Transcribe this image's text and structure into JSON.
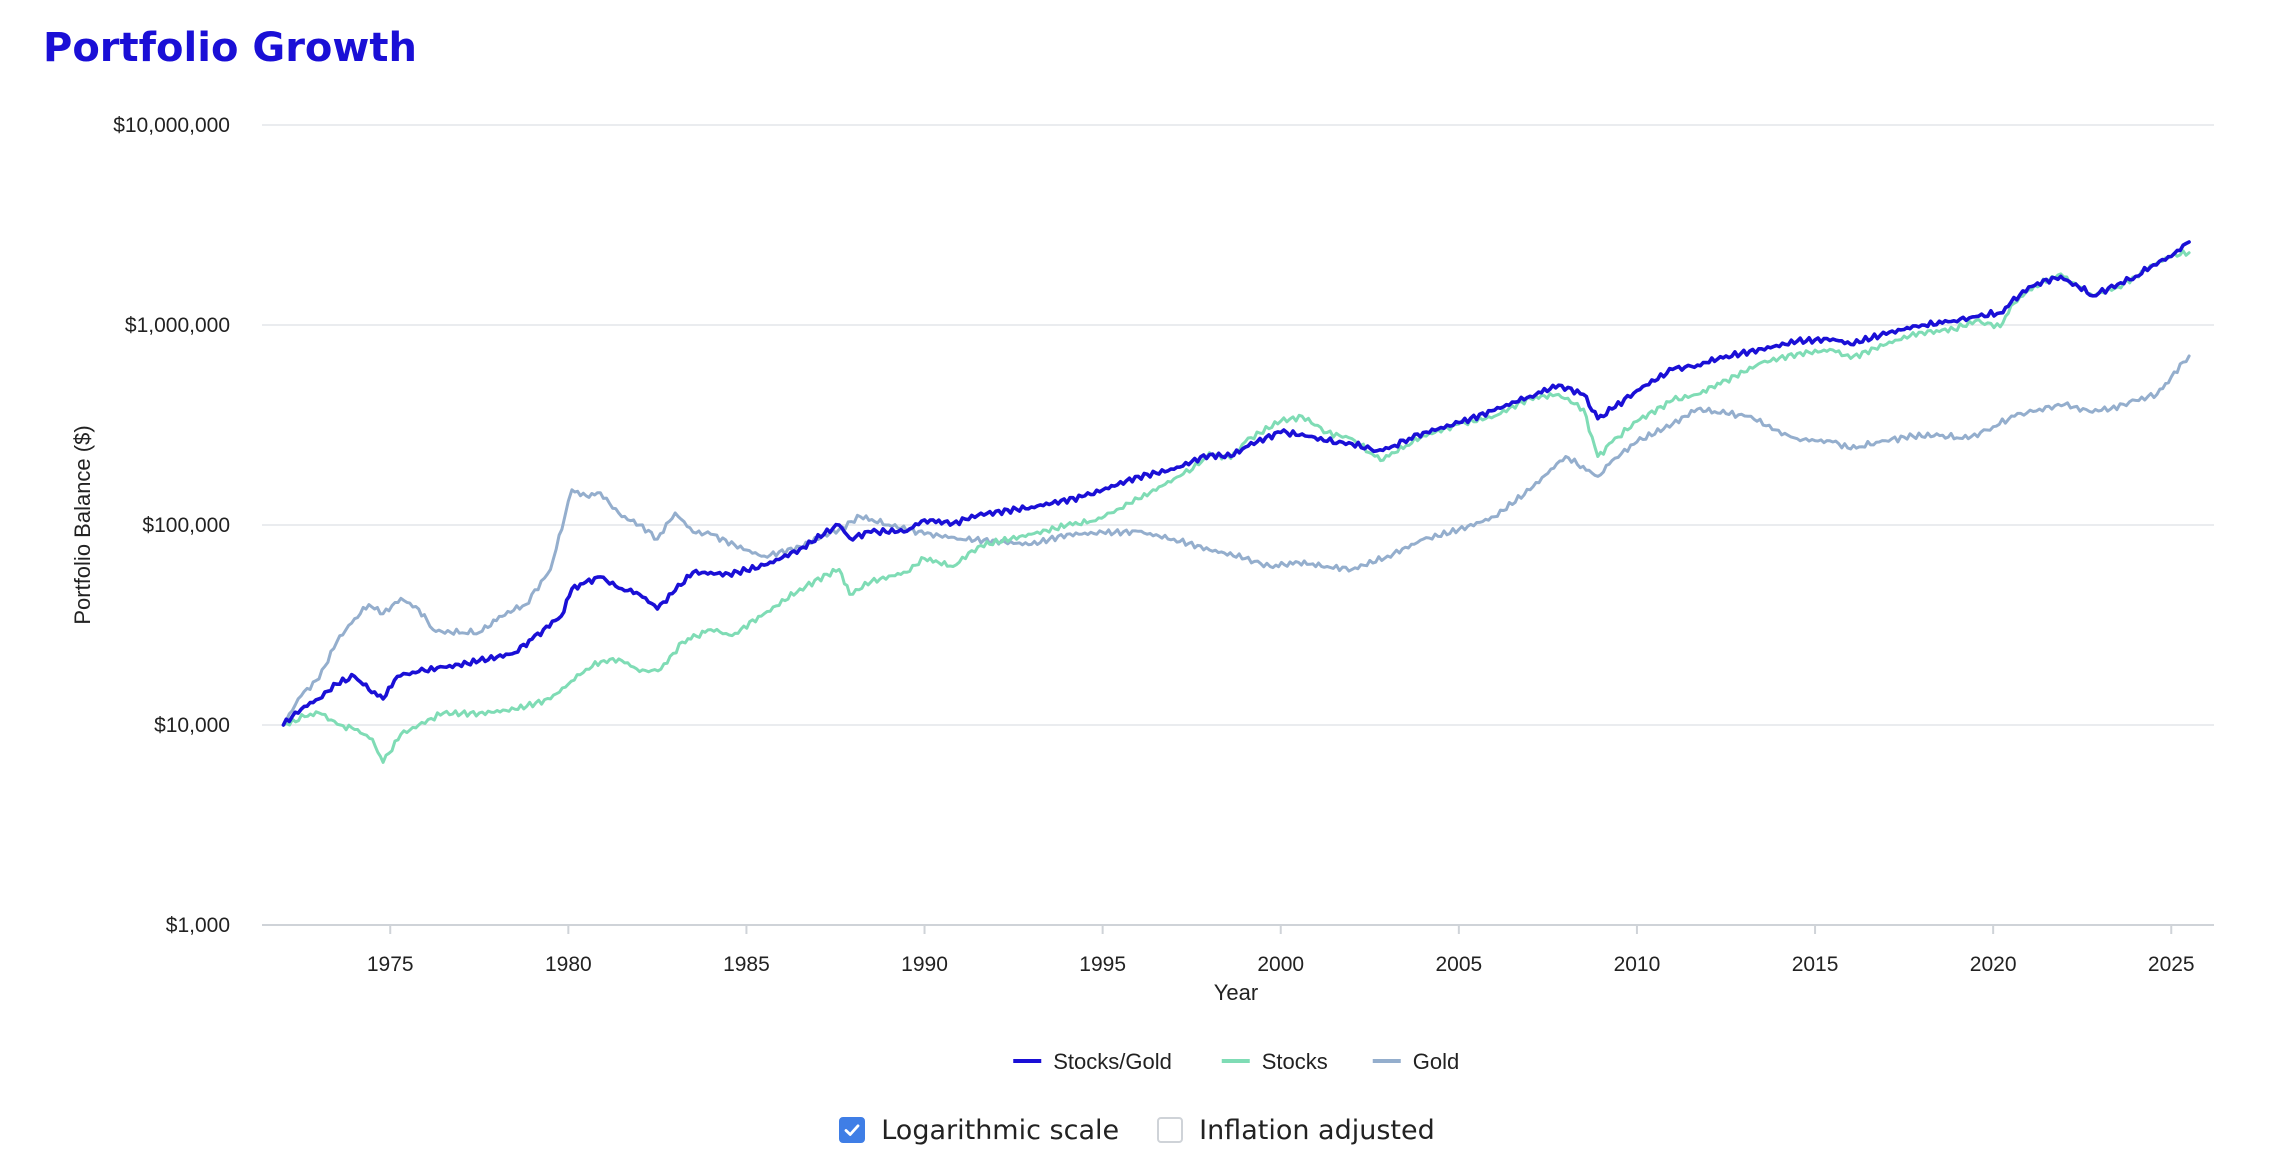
{
  "page": {
    "title": "Portfolio Growth"
  },
  "controls": {
    "log_scale": {
      "label": "Logarithmic scale",
      "checked": true
    },
    "inflation": {
      "label": "Inflation adjusted",
      "checked": false
    }
  },
  "colors": {
    "title": "#1a0fd6",
    "checkbox_checked": "#3f7ee6",
    "gridline": "#e4e6ea",
    "axis_text": "#222222"
  },
  "chart_data": {
    "type": "line",
    "title": "",
    "xlabel": "Year",
    "ylabel": "Portfolio Balance ($)",
    "y_scale": "log",
    "ylim": [
      1000,
      10000000
    ],
    "xlim": [
      1971.4,
      2026.2
    ],
    "y_ticks": [
      {
        "value": 10000000,
        "label": "$10,000,000"
      },
      {
        "value": 1000000,
        "label": "$1,000,000"
      },
      {
        "value": 100000,
        "label": "$100,000"
      },
      {
        "value": 10000,
        "label": "$10,000"
      },
      {
        "value": 1000,
        "label": "$1,000"
      }
    ],
    "x_ticks": [
      1975,
      1980,
      1985,
      1990,
      1995,
      2000,
      2005,
      2010,
      2015,
      2020,
      2025
    ],
    "grid": true,
    "legend_position": "bottom-center",
    "series": [
      {
        "name": "Stocks/Gold",
        "color": "#1a0fd6",
        "x": [
          1972.0,
          1972.5,
          1973.0,
          1973.5,
          1974.0,
          1974.4,
          1974.8,
          1975.2,
          1975.8,
          1976.5,
          1977.5,
          1978.5,
          1979.3,
          1979.8,
          1980.1,
          1980.5,
          1980.9,
          1981.5,
          1982.0,
          1982.5,
          1983.0,
          1983.5,
          1984.5,
          1985.5,
          1986.5,
          1987.6,
          1987.9,
          1988.5,
          1989.5,
          1990.0,
          1990.8,
          1991.5,
          1993.0,
          1994.5,
          1996.0,
          1997.0,
          1998.0,
          1998.6,
          1999.0,
          2000.0,
          2000.6,
          2001.3,
          2002.0,
          2002.7,
          2003.2,
          2004.0,
          2005.0,
          2006.0,
          2007.0,
          2007.8,
          2008.5,
          2008.9,
          2009.3,
          2010.0,
          2011.0,
          2011.7,
          2012.5,
          2013.5,
          2014.5,
          2015.5,
          2016.0,
          2017.0,
          2018.0,
          2018.9,
          2019.5,
          2020.2,
          2020.5,
          2021.0,
          2021.9,
          2022.4,
          2022.8,
          2023.5,
          2024.0,
          2024.5,
          2025.0,
          2025.5
        ],
        "values": [
          10000,
          12000,
          13500,
          16000,
          17500,
          15000,
          13500,
          17500,
          18500,
          19500,
          21000,
          23000,
          30000,
          35000,
          48000,
          52000,
          55000,
          48000,
          45000,
          38000,
          47000,
          58000,
          57000,
          63000,
          76000,
          100000,
          86000,
          92000,
          93000,
          106000,
          102000,
          112000,
          123000,
          140000,
          175000,
          190000,
          225000,
          220000,
          245000,
          290000,
          285000,
          262000,
          255000,
          235000,
          250000,
          290000,
          325000,
          375000,
          440000,
          500000,
          450000,
          340000,
          380000,
          470000,
          600000,
          630000,
          700000,
          760000,
          830000,
          850000,
          800000,
          900000,
          1000000,
          1050000,
          1100000,
          1150000,
          1300000,
          1550000,
          1750000,
          1550000,
          1400000,
          1600000,
          1750000,
          2000000,
          2200000,
          2600000
        ]
      },
      {
        "name": "Stocks",
        "color": "#7fdcb5",
        "x": [
          1972.0,
          1972.6,
          1973.0,
          1973.6,
          1974.0,
          1974.5,
          1974.8,
          1975.3,
          1975.8,
          1976.5,
          1977.5,
          1978.5,
          1979.5,
          1980.0,
          1980.5,
          1981.0,
          1981.5,
          1982.0,
          1982.6,
          1983.2,
          1984.0,
          1984.6,
          1985.5,
          1986.5,
          1987.6,
          1987.9,
          1988.5,
          1989.5,
          1990.0,
          1990.8,
          1991.5,
          1993.0,
          1994.0,
          1994.8,
          1996.0,
          1997.0,
          1997.7,
          1998.0,
          1998.6,
          1999.0,
          2000.0,
          2000.6,
          2001.3,
          2002.0,
          2002.8,
          2003.2,
          2004.0,
          2005.0,
          2006.0,
          2007.0,
          2007.8,
          2008.5,
          2008.9,
          2009.3,
          2010.0,
          2011.0,
          2011.7,
          2012.5,
          2013.5,
          2014.5,
          2015.5,
          2016.0,
          2017.0,
          2018.0,
          2018.9,
          2019.5,
          2020.2,
          2020.5,
          2021.0,
          2021.9,
          2022.4,
          2022.8,
          2023.5,
          2024.0,
          2024.5,
          2025.0,
          2025.5
        ],
        "values": [
          10000,
          11000,
          11500,
          10000,
          9500,
          8500,
          6500,
          9000,
          10000,
          11500,
          11500,
          12000,
          13500,
          16000,
          19000,
          21000,
          21000,
          18500,
          19000,
          26000,
          30000,
          28000,
          36000,
          48000,
          60000,
          45000,
          52000,
          58000,
          68000,
          62000,
          78000,
          90000,
          100000,
          105000,
          135000,
          170000,
          200000,
          230000,
          215000,
          260000,
          330000,
          350000,
          290000,
          270000,
          210000,
          230000,
          280000,
          320000,
          350000,
          430000,
          450000,
          380000,
          220000,
          260000,
          330000,
          420000,
          450000,
          530000,
          650000,
          720000,
          750000,
          680000,
          800000,
          920000,
          950000,
          1050000,
          980000,
          1250000,
          1500000,
          1800000,
          1550000,
          1400000,
          1550000,
          1750000,
          2000000,
          2200000,
          2300000
        ]
      },
      {
        "name": "Gold",
        "color": "#94aecd",
        "x": [
          1972.0,
          1972.5,
          1973.0,
          1973.5,
          1974.0,
          1974.4,
          1974.8,
          1975.3,
          1975.8,
          1976.2,
          1976.7,
          1977.5,
          1978.3,
          1978.8,
          1979.5,
          1979.9,
          1980.1,
          1980.5,
          1980.9,
          1981.5,
          1982.0,
          1982.5,
          1983.0,
          1983.5,
          1984.0,
          1985.0,
          1985.5,
          1986.5,
          1987.6,
          1988.2,
          1989.0,
          1990.0,
          1991.0,
          1993.0,
          1994.0,
          1995.0,
          1996.0,
          1997.0,
          1998.0,
          1999.0,
          1999.7,
          2000.5,
          2001.3,
          2002.0,
          2003.0,
          2004.0,
          2005.0,
          2006.0,
          2007.0,
          2008.0,
          2008.9,
          2009.3,
          2010.0,
          2011.0,
          2011.7,
          2012.5,
          2013.2,
          2013.8,
          2014.5,
          2015.5,
          2016.0,
          2016.8,
          2017.5,
          2018.5,
          2019.3,
          2020.0,
          2020.6,
          2021.3,
          2022.0,
          2022.7,
          2023.3,
          2024.0,
          2024.6,
          2025.0,
          2025.5
        ],
        "values": [
          10000,
          14000,
          17000,
          26000,
          34000,
          40000,
          36000,
          43000,
          38000,
          30000,
          29000,
          29000,
          37000,
          40000,
          60000,
          110000,
          150000,
          140000,
          145000,
          110000,
          100000,
          85000,
          115000,
          92000,
          90000,
          75000,
          70000,
          78000,
          95000,
          110000,
          100000,
          90000,
          85000,
          80000,
          90000,
          92000,
          93000,
          85000,
          75000,
          68000,
          62000,
          65000,
          62000,
          60000,
          70000,
          85000,
          95000,
          110000,
          150000,
          220000,
          175000,
          210000,
          260000,
          320000,
          380000,
          360000,
          350000,
          300000,
          270000,
          260000,
          240000,
          260000,
          275000,
          280000,
          270000,
          310000,
          350000,
          380000,
          400000,
          370000,
          380000,
          420000,
          450000,
          550000,
          700000
        ]
      }
    ]
  }
}
